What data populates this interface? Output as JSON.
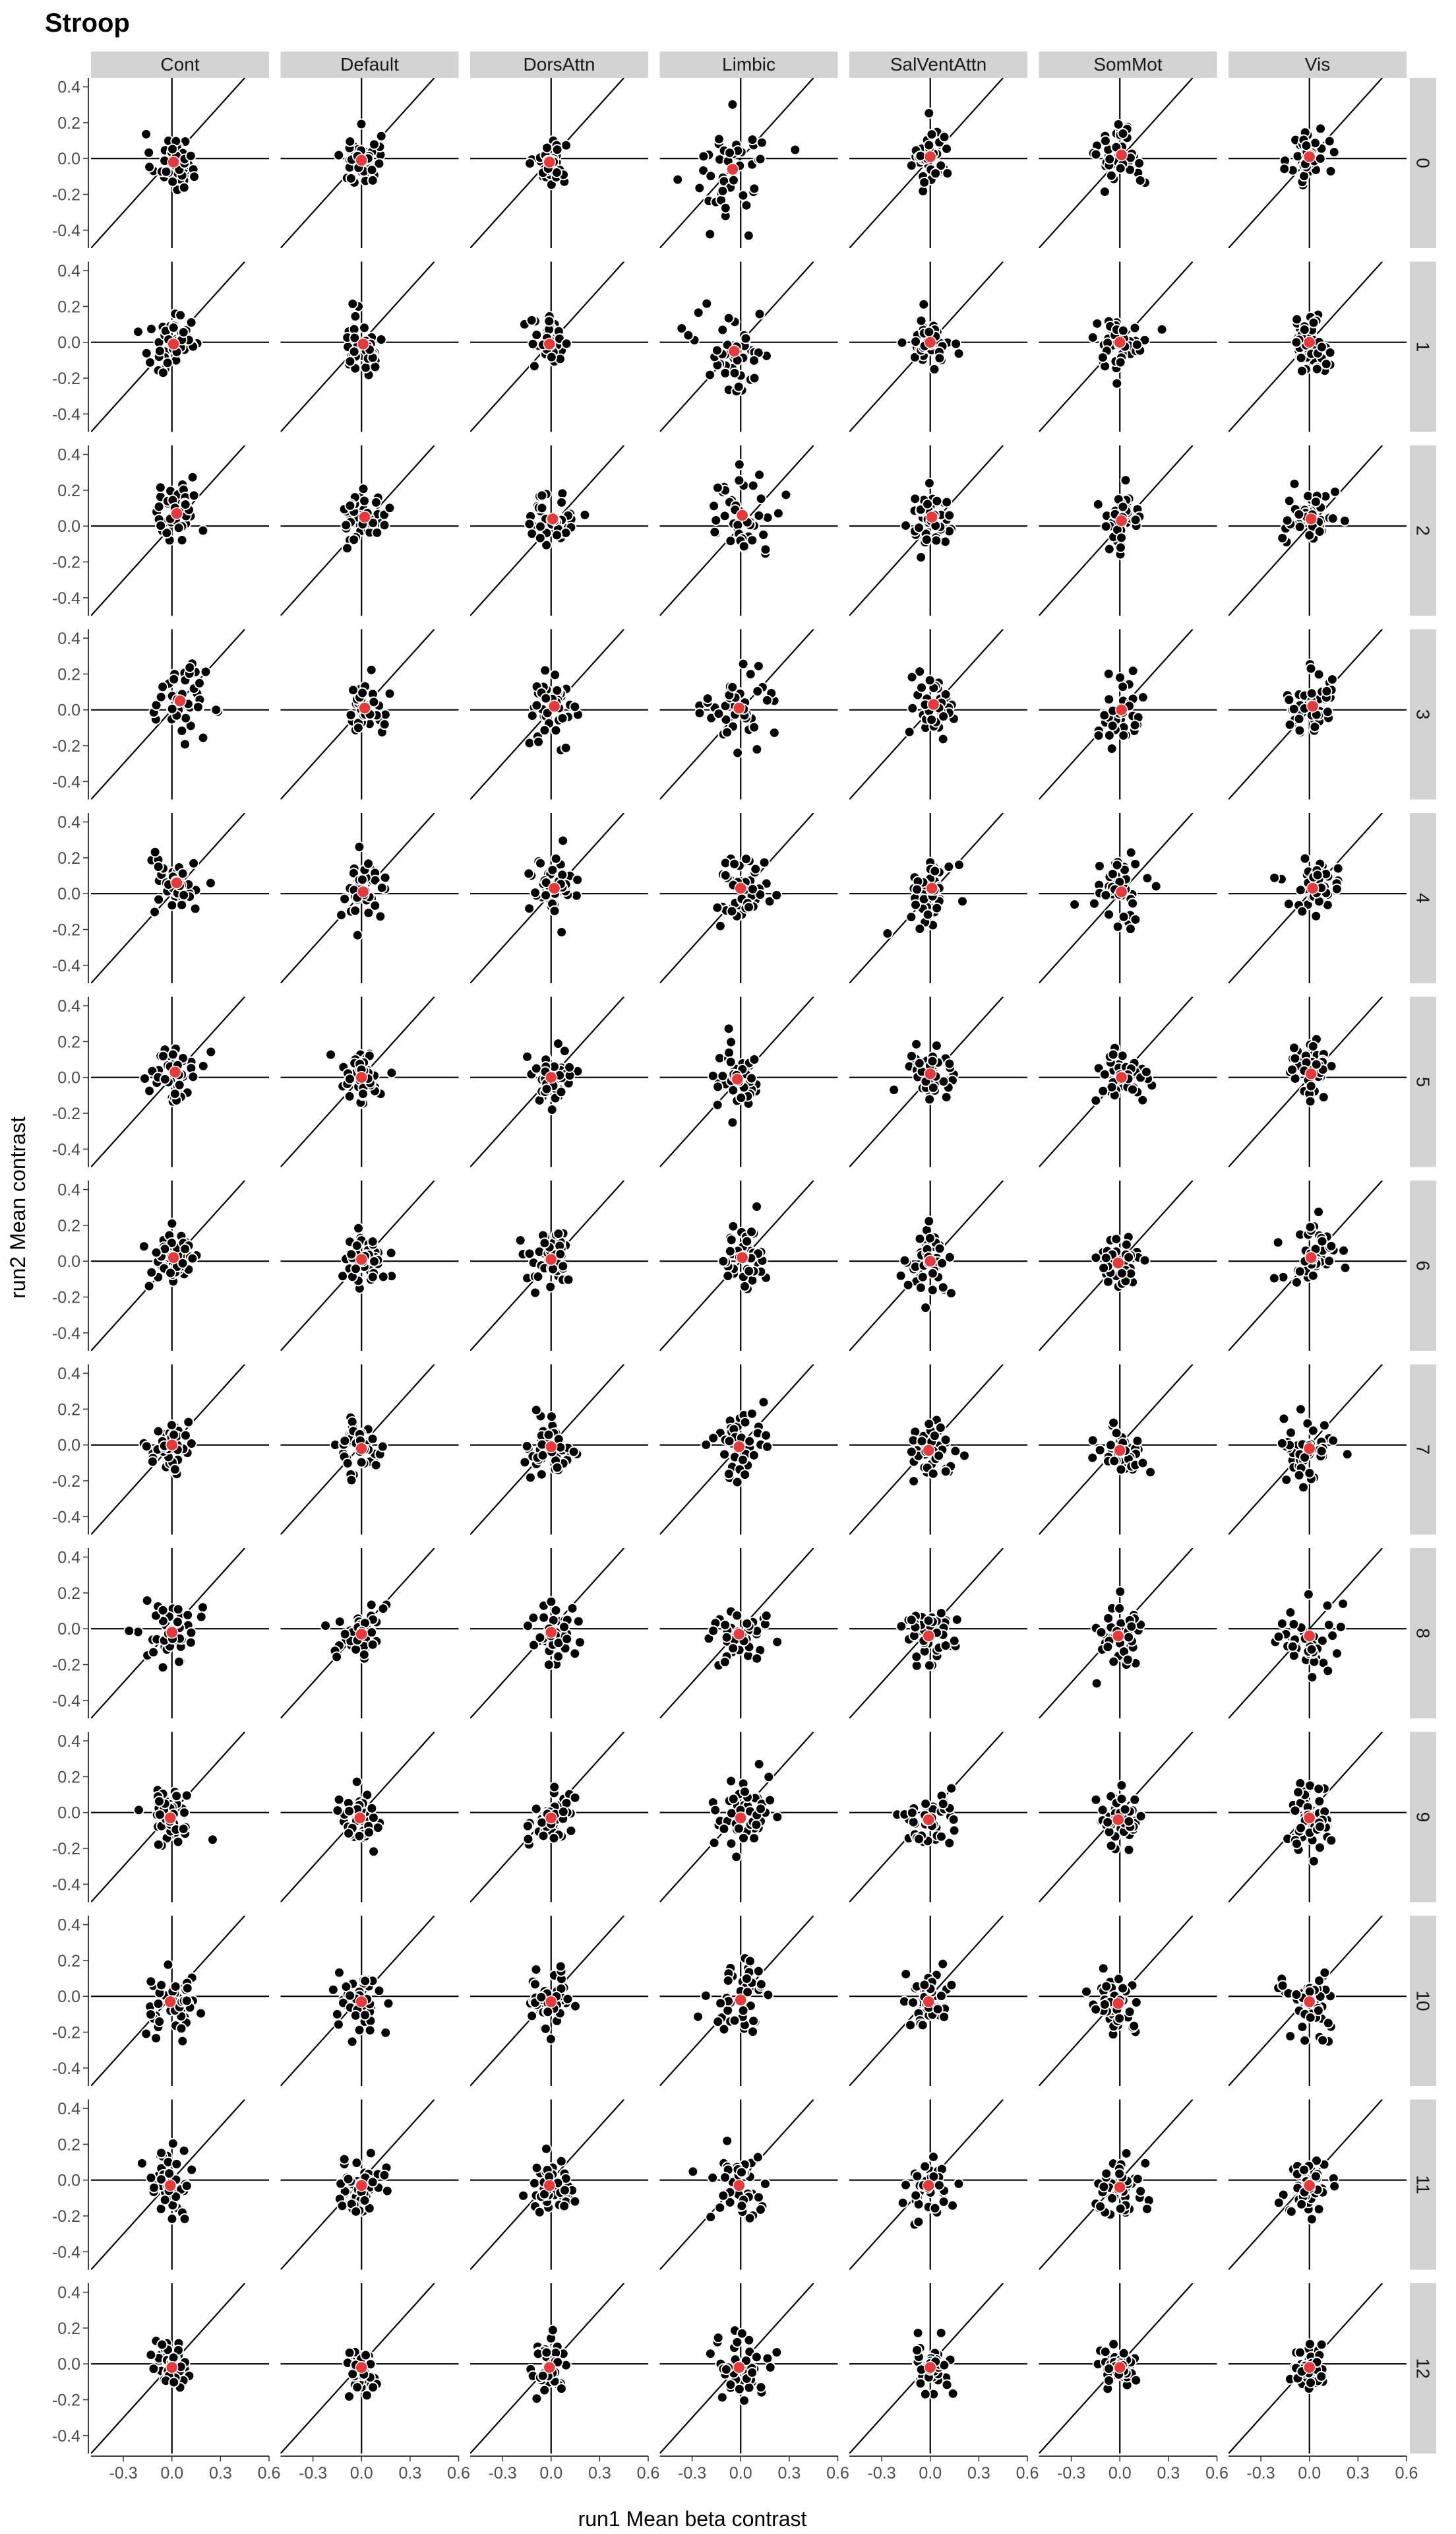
{
  "chart_data": {
    "type": "scatter",
    "title": "Stroop",
    "xlabel": "run1 Mean beta contrast",
    "ylabel": "run2 Mean contrast",
    "networks": [
      "Cont",
      "Default",
      "DorsAttn",
      "Limbic",
      "SalVentAttn",
      "SomMot",
      "Vis"
    ],
    "rows": [
      "0",
      "1",
      "2",
      "3",
      "4",
      "5",
      "6",
      "7",
      "8",
      "9",
      "10",
      "11",
      "12"
    ],
    "xlim": [
      -0.5,
      0.6
    ],
    "ylim": [
      -0.5,
      0.45
    ],
    "x_ticks": [
      -0.3,
      0.0,
      0.3,
      0.6
    ],
    "x_tick_labels": [
      "-0.3",
      "0.0",
      "0.3",
      "0.6"
    ],
    "y_ticks": [
      0.4,
      0.2,
      0.0,
      -0.2,
      -0.4
    ],
    "y_tick_labels": [
      "0.4",
      "0.2",
      "0.0",
      "-0.2",
      "-0.4"
    ],
    "reference_lines": [
      "y = x",
      "x = 0",
      "y = 0"
    ],
    "point_color": "#000000",
    "mean_color": "#e8393a",
    "strip_color": "#d3d3d3",
    "grid": false,
    "points_per_panel": 45,
    "panels": [
      {
        "row": "0",
        "network": "Cont",
        "mean": [
          0.01,
          -0.02
        ],
        "sd": [
          0.07,
          0.08
        ]
      },
      {
        "row": "0",
        "network": "Default",
        "mean": [
          0.0,
          -0.01
        ],
        "sd": [
          0.06,
          0.08
        ]
      },
      {
        "row": "0",
        "network": "DorsAttn",
        "mean": [
          -0.01,
          -0.02
        ],
        "sd": [
          0.05,
          0.06
        ]
      },
      {
        "row": "0",
        "network": "Limbic",
        "mean": [
          -0.05,
          -0.06
        ],
        "sd": [
          0.12,
          0.14
        ]
      },
      {
        "row": "0",
        "network": "SalVentAttn",
        "mean": [
          0.0,
          0.01
        ],
        "sd": [
          0.06,
          0.09
        ]
      },
      {
        "row": "0",
        "network": "SomMot",
        "mean": [
          0.01,
          0.02
        ],
        "sd": [
          0.07,
          0.09
        ]
      },
      {
        "row": "0",
        "network": "Vis",
        "mean": [
          0.0,
          0.01
        ],
        "sd": [
          0.06,
          0.08
        ]
      },
      {
        "row": "1",
        "network": "Cont",
        "mean": [
          0.01,
          -0.01
        ],
        "sd": [
          0.09,
          0.09
        ]
      },
      {
        "row": "1",
        "network": "Default",
        "mean": [
          0.01,
          -0.01
        ],
        "sd": [
          0.06,
          0.08
        ]
      },
      {
        "row": "1",
        "network": "DorsAttn",
        "mean": [
          -0.01,
          -0.01
        ],
        "sd": [
          0.06,
          0.07
        ]
      },
      {
        "row": "1",
        "network": "Limbic",
        "mean": [
          -0.04,
          -0.05
        ],
        "sd": [
          0.12,
          0.12
        ]
      },
      {
        "row": "1",
        "network": "SalVentAttn",
        "mean": [
          0.0,
          0.0
        ],
        "sd": [
          0.06,
          0.07
        ]
      },
      {
        "row": "1",
        "network": "SomMot",
        "mean": [
          0.0,
          0.0
        ],
        "sd": [
          0.09,
          0.07
        ]
      },
      {
        "row": "1",
        "network": "Vis",
        "mean": [
          0.0,
          0.0
        ],
        "sd": [
          0.06,
          0.08
        ]
      },
      {
        "row": "2",
        "network": "Cont",
        "mean": [
          0.03,
          0.07
        ],
        "sd": [
          0.07,
          0.08
        ]
      },
      {
        "row": "2",
        "network": "Default",
        "mean": [
          0.02,
          0.05
        ],
        "sd": [
          0.07,
          0.07
        ]
      },
      {
        "row": "2",
        "network": "DorsAttn",
        "mean": [
          0.01,
          0.04
        ],
        "sd": [
          0.07,
          0.08
        ]
      },
      {
        "row": "2",
        "network": "Limbic",
        "mean": [
          0.01,
          0.06
        ],
        "sd": [
          0.12,
          0.11
        ]
      },
      {
        "row": "2",
        "network": "SalVentAttn",
        "mean": [
          0.01,
          0.05
        ],
        "sd": [
          0.07,
          0.08
        ]
      },
      {
        "row": "2",
        "network": "SomMot",
        "mean": [
          0.01,
          0.03
        ],
        "sd": [
          0.07,
          0.08
        ]
      },
      {
        "row": "2",
        "network": "Vis",
        "mean": [
          0.01,
          0.04
        ],
        "sd": [
          0.08,
          0.08
        ]
      },
      {
        "row": "3",
        "network": "Cont",
        "mean": [
          0.05,
          0.05
        ],
        "sd": [
          0.08,
          0.09
        ]
      },
      {
        "row": "3",
        "network": "Default",
        "mean": [
          0.02,
          0.01
        ],
        "sd": [
          0.06,
          0.09
        ]
      },
      {
        "row": "3",
        "network": "DorsAttn",
        "mean": [
          0.02,
          0.02
        ],
        "sd": [
          0.07,
          0.09
        ]
      },
      {
        "row": "3",
        "network": "Limbic",
        "mean": [
          -0.01,
          0.01
        ],
        "sd": [
          0.11,
          0.11
        ]
      },
      {
        "row": "3",
        "network": "SalVentAttn",
        "mean": [
          0.02,
          0.03
        ],
        "sd": [
          0.06,
          0.09
        ]
      },
      {
        "row": "3",
        "network": "SomMot",
        "mean": [
          0.01,
          0.0
        ],
        "sd": [
          0.07,
          0.09
        ]
      },
      {
        "row": "3",
        "network": "Vis",
        "mean": [
          0.02,
          0.02
        ],
        "sd": [
          0.08,
          0.09
        ]
      },
      {
        "row": "4",
        "network": "Cont",
        "mean": [
          0.03,
          0.06
        ],
        "sd": [
          0.08,
          0.08
        ]
      },
      {
        "row": "4",
        "network": "Default",
        "mean": [
          0.01,
          0.01
        ],
        "sd": [
          0.07,
          0.08
        ]
      },
      {
        "row": "4",
        "network": "DorsAttn",
        "mean": [
          0.02,
          0.03
        ],
        "sd": [
          0.08,
          0.08
        ]
      },
      {
        "row": "4",
        "network": "Limbic",
        "mean": [
          0.0,
          0.03
        ],
        "sd": [
          0.09,
          0.1
        ]
      },
      {
        "row": "4",
        "network": "SalVentAttn",
        "mean": [
          0.01,
          0.03
        ],
        "sd": [
          0.07,
          0.09
        ]
      },
      {
        "row": "4",
        "network": "SomMot",
        "mean": [
          0.01,
          0.01
        ],
        "sd": [
          0.07,
          0.08
        ]
      },
      {
        "row": "4",
        "network": "Vis",
        "mean": [
          0.02,
          0.03
        ],
        "sd": [
          0.09,
          0.09
        ]
      },
      {
        "row": "5",
        "network": "Cont",
        "mean": [
          0.02,
          0.03
        ],
        "sd": [
          0.07,
          0.08
        ]
      },
      {
        "row": "5",
        "network": "Default",
        "mean": [
          0.0,
          0.0
        ],
        "sd": [
          0.07,
          0.08
        ]
      },
      {
        "row": "5",
        "network": "DorsAttn",
        "mean": [
          0.0,
          0.0
        ],
        "sd": [
          0.07,
          0.08
        ]
      },
      {
        "row": "5",
        "network": "Limbic",
        "mean": [
          -0.02,
          -0.01
        ],
        "sd": [
          0.09,
          0.11
        ]
      },
      {
        "row": "5",
        "network": "SalVentAttn",
        "mean": [
          0.0,
          0.02
        ],
        "sd": [
          0.07,
          0.09
        ]
      },
      {
        "row": "5",
        "network": "SomMot",
        "mean": [
          0.01,
          0.0
        ],
        "sd": [
          0.08,
          0.08
        ]
      },
      {
        "row": "5",
        "network": "Vis",
        "mean": [
          0.01,
          0.02
        ],
        "sd": [
          0.08,
          0.09
        ]
      },
      {
        "row": "6",
        "network": "Cont",
        "mean": [
          0.01,
          0.02
        ],
        "sd": [
          0.08,
          0.09
        ]
      },
      {
        "row": "6",
        "network": "Default",
        "mean": [
          0.0,
          0.01
        ],
        "sd": [
          0.07,
          0.08
        ]
      },
      {
        "row": "6",
        "network": "DorsAttn",
        "mean": [
          0.0,
          0.01
        ],
        "sd": [
          0.07,
          0.08
        ]
      },
      {
        "row": "6",
        "network": "Limbic",
        "mean": [
          0.01,
          0.02
        ],
        "sd": [
          0.09,
          0.11
        ]
      },
      {
        "row": "6",
        "network": "SalVentAttn",
        "mean": [
          0.0,
          0.0
        ],
        "sd": [
          0.06,
          0.08
        ]
      },
      {
        "row": "6",
        "network": "SomMot",
        "mean": [
          -0.01,
          -0.01
        ],
        "sd": [
          0.07,
          0.07
        ]
      },
      {
        "row": "6",
        "network": "Vis",
        "mean": [
          0.01,
          0.02
        ],
        "sd": [
          0.09,
          0.09
        ]
      },
      {
        "row": "7",
        "network": "Cont",
        "mean": [
          0.0,
          0.0
        ],
        "sd": [
          0.07,
          0.08
        ]
      },
      {
        "row": "7",
        "network": "Default",
        "mean": [
          0.0,
          -0.02
        ],
        "sd": [
          0.07,
          0.08
        ]
      },
      {
        "row": "7",
        "network": "DorsAttn",
        "mean": [
          0.0,
          -0.01
        ],
        "sd": [
          0.07,
          0.08
        ]
      },
      {
        "row": "7",
        "network": "Limbic",
        "mean": [
          -0.01,
          -0.01
        ],
        "sd": [
          0.08,
          0.09
        ]
      },
      {
        "row": "7",
        "network": "SalVentAttn",
        "mean": [
          -0.01,
          -0.03
        ],
        "sd": [
          0.07,
          0.07
        ]
      },
      {
        "row": "7",
        "network": "SomMot",
        "mean": [
          0.0,
          -0.03
        ],
        "sd": [
          0.08,
          0.08
        ]
      },
      {
        "row": "7",
        "network": "Vis",
        "mean": [
          0.0,
          -0.02
        ],
        "sd": [
          0.09,
          0.09
        ]
      },
      {
        "row": "8",
        "network": "Cont",
        "mean": [
          0.0,
          -0.02
        ],
        "sd": [
          0.08,
          0.09
        ]
      },
      {
        "row": "8",
        "network": "Default",
        "mean": [
          0.0,
          -0.03
        ],
        "sd": [
          0.07,
          0.08
        ]
      },
      {
        "row": "8",
        "network": "DorsAttn",
        "mean": [
          0.0,
          -0.02
        ],
        "sd": [
          0.07,
          0.08
        ]
      },
      {
        "row": "8",
        "network": "Limbic",
        "mean": [
          -0.01,
          -0.03
        ],
        "sd": [
          0.09,
          0.09
        ]
      },
      {
        "row": "8",
        "network": "SalVentAttn",
        "mean": [
          -0.01,
          -0.04
        ],
        "sd": [
          0.08,
          0.09
        ]
      },
      {
        "row": "8",
        "network": "SomMot",
        "mean": [
          -0.01,
          -0.04
        ],
        "sd": [
          0.08,
          0.09
        ]
      },
      {
        "row": "8",
        "network": "Vis",
        "mean": [
          0.0,
          -0.04
        ],
        "sd": [
          0.09,
          0.09
        ]
      },
      {
        "row": "9",
        "network": "Cont",
        "mean": [
          -0.01,
          -0.03
        ],
        "sd": [
          0.07,
          0.09
        ]
      },
      {
        "row": "9",
        "network": "Default",
        "mean": [
          -0.01,
          -0.03
        ],
        "sd": [
          0.06,
          0.08
        ]
      },
      {
        "row": "9",
        "network": "DorsAttn",
        "mean": [
          0.0,
          -0.03
        ],
        "sd": [
          0.07,
          0.08
        ]
      },
      {
        "row": "9",
        "network": "Limbic",
        "mean": [
          0.0,
          -0.03
        ],
        "sd": [
          0.09,
          0.1
        ]
      },
      {
        "row": "9",
        "network": "SalVentAttn",
        "mean": [
          -0.01,
          -0.04
        ],
        "sd": [
          0.07,
          0.08
        ]
      },
      {
        "row": "9",
        "network": "SomMot",
        "mean": [
          -0.01,
          -0.04
        ],
        "sd": [
          0.07,
          0.08
        ]
      },
      {
        "row": "9",
        "network": "Vis",
        "mean": [
          0.0,
          -0.03
        ],
        "sd": [
          0.08,
          0.1
        ]
      },
      {
        "row": "10",
        "network": "Cont",
        "mean": [
          -0.01,
          -0.03
        ],
        "sd": [
          0.08,
          0.09
        ]
      },
      {
        "row": "10",
        "network": "Default",
        "mean": [
          0.0,
          -0.03
        ],
        "sd": [
          0.07,
          0.08
        ]
      },
      {
        "row": "10",
        "network": "DorsAttn",
        "mean": [
          0.0,
          -0.03
        ],
        "sd": [
          0.07,
          0.08
        ]
      },
      {
        "row": "10",
        "network": "Limbic",
        "mean": [
          0.0,
          -0.02
        ],
        "sd": [
          0.09,
          0.1
        ]
      },
      {
        "row": "10",
        "network": "SalVentAttn",
        "mean": [
          -0.01,
          -0.03
        ],
        "sd": [
          0.08,
          0.08
        ]
      },
      {
        "row": "10",
        "network": "SomMot",
        "mean": [
          -0.01,
          -0.04
        ],
        "sd": [
          0.07,
          0.08
        ]
      },
      {
        "row": "10",
        "network": "Vis",
        "mean": [
          0.0,
          -0.03
        ],
        "sd": [
          0.09,
          0.09
        ]
      },
      {
        "row": "11",
        "network": "Cont",
        "mean": [
          -0.01,
          -0.03
        ],
        "sd": [
          0.07,
          0.09
        ]
      },
      {
        "row": "11",
        "network": "Default",
        "mean": [
          0.0,
          -0.03
        ],
        "sd": [
          0.07,
          0.08
        ]
      },
      {
        "row": "11",
        "network": "DorsAttn",
        "mean": [
          -0.01,
          -0.03
        ],
        "sd": [
          0.07,
          0.08
        ]
      },
      {
        "row": "11",
        "network": "Limbic",
        "mean": [
          -0.01,
          -0.03
        ],
        "sd": [
          0.1,
          0.09
        ]
      },
      {
        "row": "11",
        "network": "SalVentAttn",
        "mean": [
          -0.01,
          -0.03
        ],
        "sd": [
          0.07,
          0.08
        ]
      },
      {
        "row": "11",
        "network": "SomMot",
        "mean": [
          0.0,
          -0.04
        ],
        "sd": [
          0.07,
          0.08
        ]
      },
      {
        "row": "11",
        "network": "Vis",
        "mean": [
          0.0,
          -0.03
        ],
        "sd": [
          0.07,
          0.08
        ]
      },
      {
        "row": "12",
        "network": "Cont",
        "mean": [
          0.0,
          -0.02
        ],
        "sd": [
          0.06,
          0.07
        ]
      },
      {
        "row": "12",
        "network": "Default",
        "mean": [
          0.0,
          -0.02
        ],
        "sd": [
          0.05,
          0.06
        ]
      },
      {
        "row": "12",
        "network": "DorsAttn",
        "mean": [
          -0.01,
          -0.02
        ],
        "sd": [
          0.05,
          0.07
        ]
      },
      {
        "row": "12",
        "network": "Limbic",
        "mean": [
          -0.01,
          -0.02
        ],
        "sd": [
          0.1,
          0.08
        ]
      },
      {
        "row": "12",
        "network": "SalVentAttn",
        "mean": [
          0.0,
          -0.02
        ],
        "sd": [
          0.06,
          0.07
        ]
      },
      {
        "row": "12",
        "network": "SomMot",
        "mean": [
          0.0,
          -0.02
        ],
        "sd": [
          0.06,
          0.06
        ]
      },
      {
        "row": "12",
        "network": "Vis",
        "mean": [
          0.0,
          -0.02
        ],
        "sd": [
          0.06,
          0.06
        ]
      }
    ]
  }
}
